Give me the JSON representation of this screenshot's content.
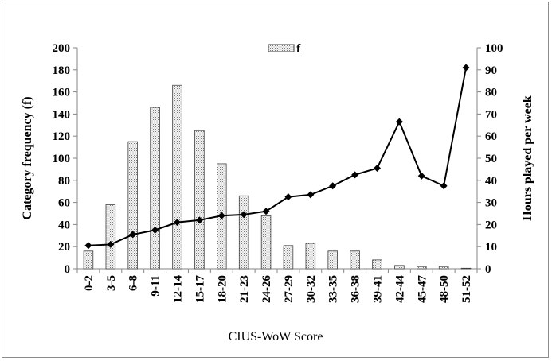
{
  "chart_data": {
    "type": "bar+line",
    "categories": [
      "0-2",
      "3-5",
      "6-8",
      "9-11",
      "12-14",
      "15-17",
      "18-20",
      "21-23",
      "24-26",
      "27-29",
      "30-32",
      "33-35",
      "36-38",
      "39-41",
      "42-44",
      "45-47",
      "48-50",
      "51-52"
    ],
    "series": [
      {
        "name": "f",
        "type": "bar",
        "axis": "left",
        "values": [
          16,
          58,
          115,
          146,
          166,
          125,
          95,
          66,
          48,
          21,
          23,
          16,
          16,
          8,
          3,
          2,
          2,
          0.5
        ]
      },
      {
        "type": "line",
        "axis": "right",
        "values": [
          10.5,
          11,
          15.5,
          17.5,
          21,
          22,
          24,
          24.5,
          26,
          32.5,
          33.5,
          37.5,
          42.5,
          45.5,
          66.5,
          42,
          37.5,
          91
        ]
      }
    ],
    "xlabel": "CIUS-WoW Score",
    "ylabel": "Category frequency (f)",
    "y2label": "Hours played per week",
    "ylim": [
      0,
      200
    ],
    "y2lim": [
      0,
      100
    ],
    "yticks": [
      0,
      20,
      40,
      60,
      80,
      100,
      120,
      140,
      160,
      180,
      200
    ],
    "y2ticks": [
      0,
      10,
      20,
      30,
      40,
      50,
      60,
      70,
      80,
      90,
      100
    ],
    "grid": false,
    "legend": "top-center",
    "colors": {
      "bar_fill": "#f2f2f2",
      "bar_stroke": "#404040",
      "line": "#000000"
    }
  }
}
